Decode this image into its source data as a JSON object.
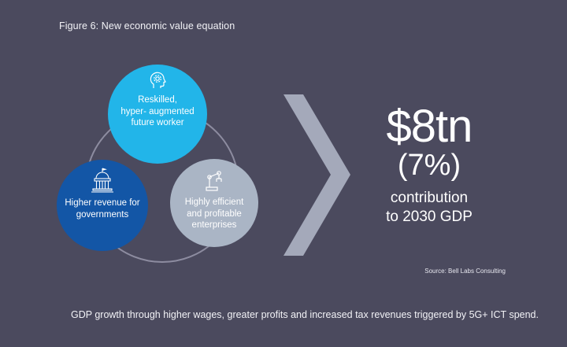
{
  "figure_title": "Figure 6: New economic value equation",
  "circles": {
    "top": {
      "icon": "gear-head-icon",
      "label": "Reskilled,\nhyper- augmented\nfuture worker",
      "color": "#22b5e9"
    },
    "left": {
      "icon": "government-building-icon",
      "label": "Higher revenue for\ngovernments",
      "color": "#1356a6"
    },
    "right": {
      "icon": "robot-arm-icon",
      "label": "Highly efficient\nand profitable\nenterprises",
      "color": "#aab5c5"
    }
  },
  "result": {
    "value": "$8tn",
    "percent": "(7%)",
    "line1": "contribution",
    "line2": "to 2030 GDP"
  },
  "source": "Source: Bell Labs Consulting",
  "footnote": "GDP growth through higher wages, greater profits and increased tax revenues triggered by 5G+ ICT spend."
}
